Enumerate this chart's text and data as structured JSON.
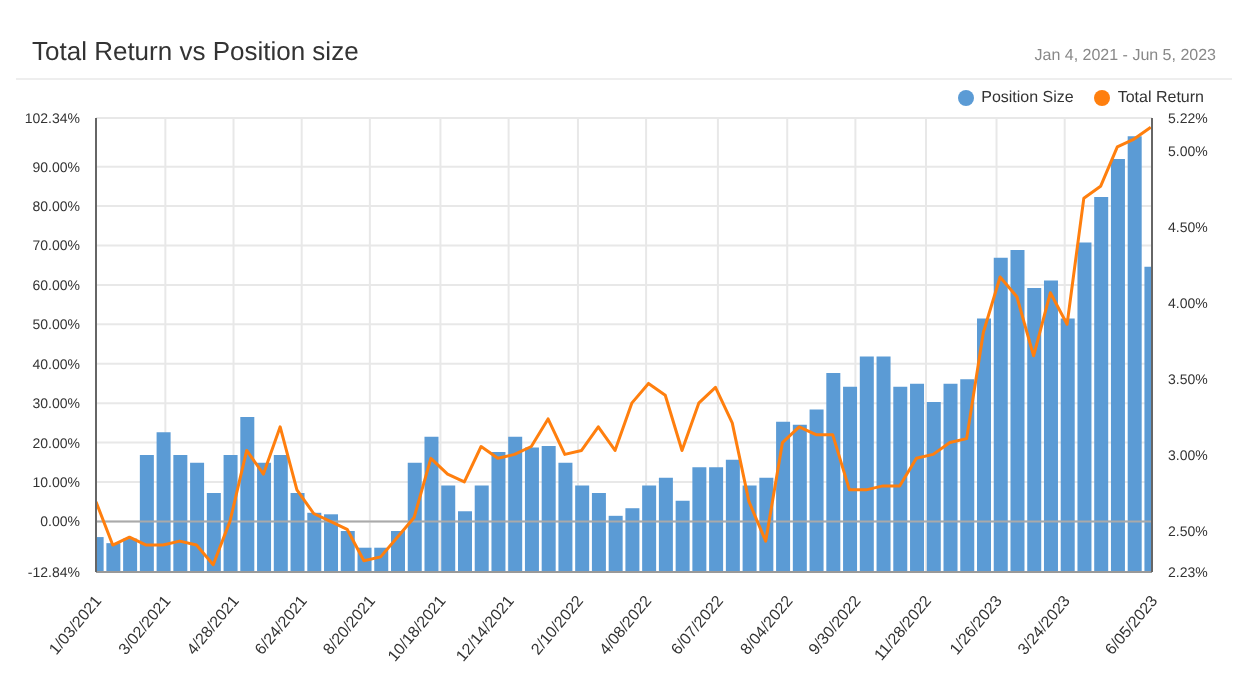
{
  "chart_data": {
    "type": "bar",
    "title": "Total Return vs Position size",
    "subtitle": "Jan 4, 2021 - Jun 5, 2023",
    "x": [
      "2021-01-03",
      "2021-01-17",
      "2021-01-31",
      "2021-02-14",
      "2021-02-28",
      "2021-03-14",
      "2021-03-28",
      "2021-04-11",
      "2021-04-25",
      "2021-05-09",
      "2021-05-23",
      "2021-06-06",
      "2021-06-20",
      "2021-07-04",
      "2021-07-18",
      "2021-08-01",
      "2021-08-15",
      "2021-08-29",
      "2021-09-12",
      "2021-09-26",
      "2021-10-10",
      "2021-10-24",
      "2021-11-07",
      "2021-11-21",
      "2021-12-05",
      "2021-12-19",
      "2022-01-02",
      "2022-01-16",
      "2022-01-30",
      "2022-02-13",
      "2022-02-27",
      "2022-03-13",
      "2022-03-27",
      "2022-04-10",
      "2022-04-24",
      "2022-05-08",
      "2022-05-22",
      "2022-06-05",
      "2022-06-19",
      "2022-07-03",
      "2022-07-17",
      "2022-07-31",
      "2022-08-14",
      "2022-08-28",
      "2022-09-11",
      "2022-09-25",
      "2022-10-09",
      "2022-10-23",
      "2022-11-06",
      "2022-11-20",
      "2022-12-04",
      "2022-12-18",
      "2023-01-01",
      "2023-01-15",
      "2023-01-29",
      "2023-02-12",
      "2023-02-26",
      "2023-03-12",
      "2023-03-26",
      "2023-04-09",
      "2023-04-23",
      "2023-05-07",
      "2023-05-21",
      "2023-06-04"
    ],
    "series": [
      {
        "name": "Position Size",
        "axis": "y2",
        "color": "#5b9bd5",
        "values": [
          2.46,
          2.42,
          2.45,
          3.0,
          3.15,
          3.0,
          2.95,
          2.75,
          3.0,
          3.25,
          2.95,
          3.0,
          2.75,
          2.62,
          2.61,
          2.5,
          2.39,
          2.39,
          2.5,
          2.95,
          3.12,
          2.8,
          2.63,
          2.8,
          3.02,
          3.12,
          3.05,
          3.06,
          2.95,
          2.8,
          2.75,
          2.6,
          2.65,
          2.8,
          2.85,
          2.7,
          2.92,
          2.92,
          2.97,
          2.8,
          2.85,
          3.22,
          3.2,
          3.3,
          3.54,
          3.45,
          3.65,
          3.65,
          3.45,
          3.47,
          3.35,
          3.47,
          3.5,
          3.9,
          4.3,
          4.35,
          4.1,
          4.15,
          3.9,
          4.4,
          4.7,
          4.95,
          5.1,
          4.24
        ]
      },
      {
        "name": "Total Return",
        "type": "line",
        "color": "#ff7f0e",
        "values": [
          5,
          -6,
          -4,
          -6,
          -6,
          -5,
          -6,
          -11,
          0,
          18,
          12,
          24,
          8,
          2,
          0,
          -2,
          -10,
          -9,
          -4,
          1,
          16,
          12,
          10,
          19,
          16,
          17,
          19,
          26,
          17,
          18,
          24,
          18,
          30,
          35,
          32,
          18,
          30,
          34,
          25,
          5,
          -5,
          20,
          24,
          22,
          22,
          8,
          8,
          9,
          9,
          16,
          17,
          20,
          21,
          48,
          62,
          57,
          42,
          58,
          50,
          82,
          85,
          95,
          97,
          100
        ]
      }
    ],
    "xlim": [
      "2021-01-03",
      "2023-06-05"
    ],
    "xticks": [
      {
        "value": "2021-01-03",
        "label": "1/03/2021"
      },
      {
        "value": "2021-03-02",
        "label": "3/02/2021"
      },
      {
        "value": "2021-04-28",
        "label": "4/28/2021"
      },
      {
        "value": "2021-06-24",
        "label": "6/24/2021"
      },
      {
        "value": "2021-08-20",
        "label": "8/20/2021"
      },
      {
        "value": "2021-10-18",
        "label": "10/18/2021"
      },
      {
        "value": "2021-12-14",
        "label": "12/14/2021"
      },
      {
        "value": "2022-02-10",
        "label": "2/10/2022"
      },
      {
        "value": "2022-04-08",
        "label": "4/08/2022"
      },
      {
        "value": "2022-06-07",
        "label": "6/07/2022"
      },
      {
        "value": "2022-08-04",
        "label": "8/04/2022"
      },
      {
        "value": "2022-09-30",
        "label": "9/30/2022"
      },
      {
        "value": "2022-11-28",
        "label": "11/28/2022"
      },
      {
        "value": "2023-01-26",
        "label": "1/26/2023"
      },
      {
        "value": "2023-03-24",
        "label": "3/24/2023"
      },
      {
        "value": "2023-06-05",
        "label": "6/05/2023"
      }
    ],
    "ylim": [
      -12.84,
      102.34
    ],
    "yticks": [
      {
        "value": -12.84,
        "label": "-12.84%"
      },
      {
        "value": 0,
        "label": "0.00%"
      },
      {
        "value": 10,
        "label": "10.00%"
      },
      {
        "value": 20,
        "label": "20.00%"
      },
      {
        "value": 30,
        "label": "30.00%"
      },
      {
        "value": 40,
        "label": "40.00%"
      },
      {
        "value": 50,
        "label": "50.00%"
      },
      {
        "value": 60,
        "label": "60.00%"
      },
      {
        "value": 70,
        "label": "70.00%"
      },
      {
        "value": 80,
        "label": "80.00%"
      },
      {
        "value": 90,
        "label": "90.00%"
      },
      {
        "value": 102.34,
        "label": "102.34%"
      }
    ],
    "y2lim": [
      2.23,
      5.22
    ],
    "y2ticks": [
      {
        "value": 2.23,
        "label": "2.23%"
      },
      {
        "value": 2.5,
        "label": "2.50%"
      },
      {
        "value": 3,
        "label": "3.00%"
      },
      {
        "value": 3.5,
        "label": "3.50%"
      },
      {
        "value": 4,
        "label": "4.00%"
      },
      {
        "value": 4.5,
        "label": "4.50%"
      },
      {
        "value": 5,
        "label": "5.00%"
      },
      {
        "value": 5.22,
        "label": "5.22%"
      }
    ],
    "ref_lines": [
      {
        "axis": "y",
        "value": 0,
        "color": "#aaaaaa"
      }
    ],
    "grid": true,
    "legend": "top right",
    "marker": "none"
  }
}
